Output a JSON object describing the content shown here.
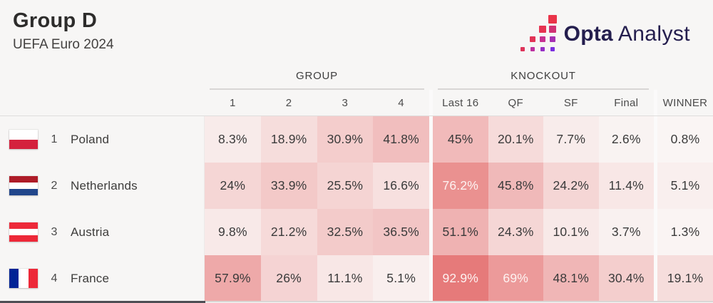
{
  "page": {
    "title": "Group D",
    "subtitle": "UEFA Euro 2024",
    "background": "#f7f6f5"
  },
  "logo": {
    "name": "Opta Analyst",
    "text_bold": "Opta",
    "text_regular": "Analyst",
    "text_color": "#241e4e",
    "squares": [
      {
        "row": 0,
        "col": 3,
        "color": "#ea3449"
      },
      {
        "row": 1,
        "col": 2,
        "color": "#e63351"
      },
      {
        "row": 1,
        "col": 3,
        "color": "#d03174"
      },
      {
        "row": 2,
        "col": 1,
        "color": "#e23355"
      },
      {
        "row": 2,
        "col": 2,
        "color": "#c73191"
      },
      {
        "row": 2,
        "col": 3,
        "color": "#a62fb2"
      },
      {
        "row": 3,
        "col": 0,
        "color": "#de3359"
      },
      {
        "row": 3,
        "col": 1,
        "color": "#bd30a0"
      },
      {
        "row": 3,
        "col": 2,
        "color": "#962fc6"
      },
      {
        "row": 3,
        "col": 3,
        "color": "#7b2ee0"
      }
    ]
  },
  "table": {
    "section_headers": {
      "group": "GROUP",
      "knockout": "KNOCKOUT"
    },
    "group_columns": [
      "1",
      "2",
      "3",
      "4"
    ],
    "knockout_columns": [
      "Last 16",
      "QF",
      "SF",
      "Final"
    ],
    "winner_column": "WINNER",
    "heat_scale": {
      "low": "#faf6f5",
      "high": "#e57171",
      "light_text_threshold": 60,
      "dark_text": "#3a3a3a",
      "light_text": "#fdf2f1"
    },
    "rows": [
      {
        "position": "1",
        "team": "Poland",
        "flag": {
          "orientation": "horizontal",
          "colors": [
            "#ffffff",
            "#d4213d"
          ]
        },
        "values": [
          "8.3%",
          "18.9%",
          "30.9%",
          "41.8%",
          "45%",
          "20.1%",
          "7.7%",
          "2.6%",
          "0.8%"
        ]
      },
      {
        "position": "2",
        "team": "Netherlands",
        "flag": {
          "orientation": "horizontal",
          "colors": [
            "#ae1c28",
            "#ffffff",
            "#21468b"
          ]
        },
        "values": [
          "24%",
          "33.9%",
          "25.5%",
          "16.6%",
          "76.2%",
          "45.8%",
          "24.2%",
          "11.4%",
          "5.1%"
        ]
      },
      {
        "position": "3",
        "team": "Austria",
        "flag": {
          "orientation": "horizontal",
          "colors": [
            "#ed2939",
            "#ffffff",
            "#ed2939"
          ]
        },
        "values": [
          "9.8%",
          "21.2%",
          "32.5%",
          "36.5%",
          "51.1%",
          "24.3%",
          "10.1%",
          "3.7%",
          "1.3%"
        ]
      },
      {
        "position": "4",
        "team": "France",
        "flag": {
          "orientation": "vertical",
          "colors": [
            "#002395",
            "#ffffff",
            "#ed2939"
          ]
        },
        "values": [
          "57.9%",
          "26%",
          "11.1%",
          "5.1%",
          "92.9%",
          "69%",
          "48.1%",
          "30.4%",
          "19.1%"
        ]
      }
    ]
  },
  "chart_data": {
    "type": "heatmap",
    "title": "Group D",
    "subtitle": "UEFA Euro 2024",
    "column_groups": [
      {
        "label": "GROUP",
        "span": 4
      },
      {
        "label": "KNOCKOUT",
        "span": 4
      },
      {
        "label": "WINNER",
        "span": 1
      }
    ],
    "columns": [
      "1",
      "2",
      "3",
      "4",
      "Last 16",
      "QF",
      "SF",
      "Final",
      "WINNER"
    ],
    "rows": [
      "Poland",
      "Netherlands",
      "Austria",
      "France"
    ],
    "values_percent": [
      [
        8.3,
        18.9,
        30.9,
        41.8,
        45.0,
        20.1,
        7.7,
        2.6,
        0.8
      ],
      [
        24.0,
        33.9,
        25.5,
        16.6,
        76.2,
        45.8,
        24.2,
        11.4,
        5.1
      ],
      [
        9.8,
        21.2,
        32.5,
        36.5,
        51.1,
        24.3,
        10.1,
        3.7,
        1.3
      ],
      [
        57.9,
        26.0,
        11.1,
        5.1,
        92.9,
        69.0,
        48.1,
        30.4,
        19.1
      ]
    ],
    "color_scale": {
      "low": "#faf6f5",
      "high": "#e57171"
    },
    "legend_position": "none",
    "grid": false
  }
}
